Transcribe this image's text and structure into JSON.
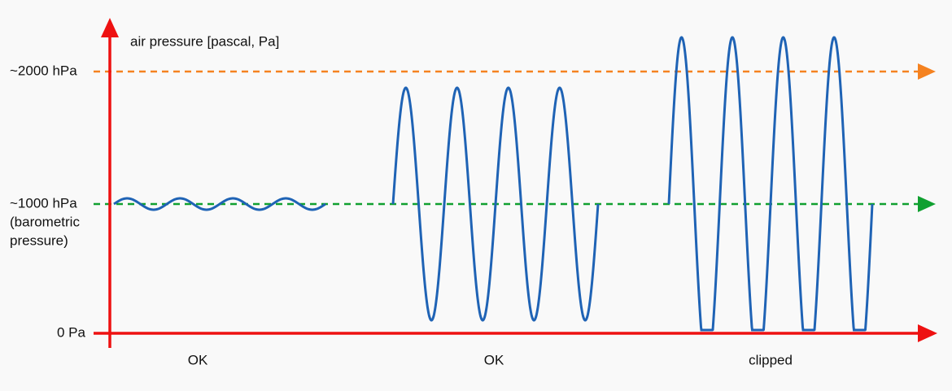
{
  "axis_label": "air pressure [pascal, Pa]",
  "levels": {
    "high": "~2000 hPa",
    "baro": [
      "~1000 hPa",
      "(barometric",
      "pressure)"
    ],
    "zero": "0 Pa"
  },
  "segments": [
    "OK",
    "OK",
    "clipped"
  ]
}
